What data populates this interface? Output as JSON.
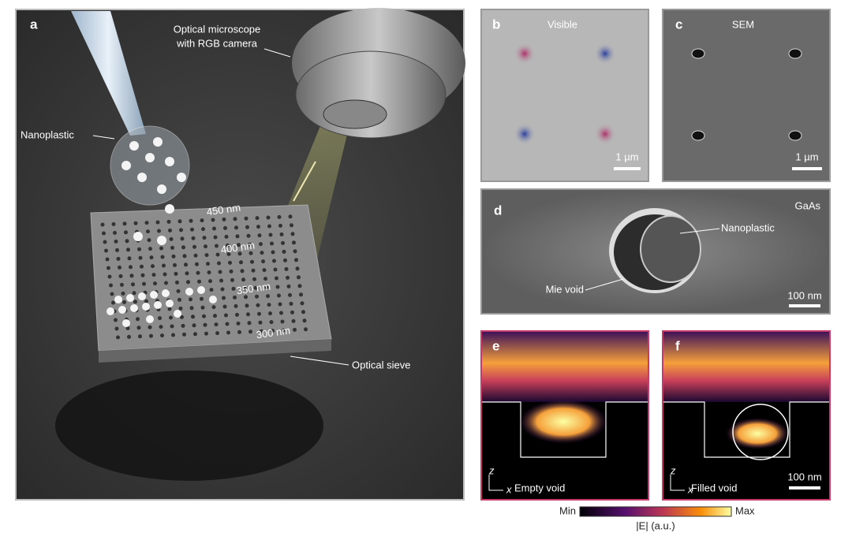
{
  "panels": {
    "a": {
      "label": "a",
      "microscope": [
        "Optical microscope",
        "with RGB camera"
      ],
      "nanoplastic": "Nanoplastic",
      "sizes": [
        "450 nm",
        "400 nm",
        "350 nm",
        "300 nm"
      ],
      "sieve": "Optical sieve"
    },
    "b": {
      "label": "b",
      "title": "Visible",
      "scale": "1 µm"
    },
    "c": {
      "label": "c",
      "title": "SEM",
      "scale": "1 µm"
    },
    "d": {
      "label": "d",
      "material": "GaAs",
      "nanoplastic": "Nanoplastic",
      "void": "Mie void",
      "scale": "100 nm"
    },
    "e": {
      "label": "e",
      "caption": "Empty void",
      "axis_z": "z",
      "axis_x": "x"
    },
    "f": {
      "label": "f",
      "caption": "Filled void",
      "scale": "100 nm",
      "axis_z": "z",
      "axis_x": "x"
    }
  },
  "colorbar": {
    "min": "Min",
    "max": "Max",
    "label": "|E| (a.u.)"
  }
}
